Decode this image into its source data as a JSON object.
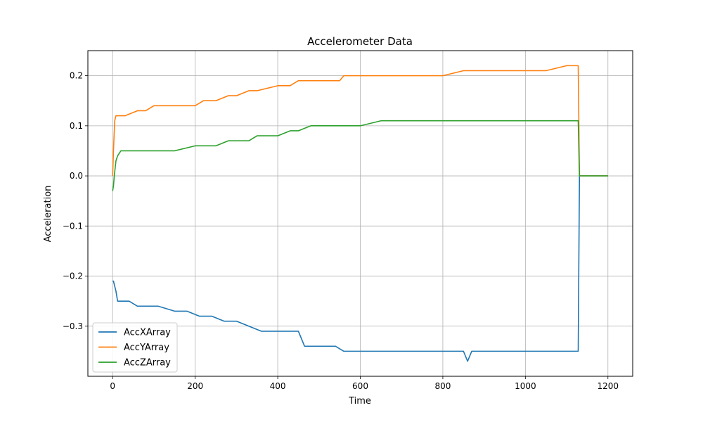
{
  "chart_data": {
    "type": "line",
    "title": "Accelerometer Data",
    "xlabel": "Time",
    "ylabel": "Acceleration",
    "xlim": [
      -60,
      1260
    ],
    "ylim": [
      -0.4,
      0.25
    ],
    "xticks": [
      0,
      200,
      400,
      600,
      800,
      1000,
      1200
    ],
    "yticks": [
      -0.3,
      -0.2,
      -0.1,
      0.0,
      0.1,
      0.2
    ],
    "xtick_labels": [
      "0",
      "200",
      "400",
      "600",
      "800",
      "1000",
      "1200"
    ],
    "ytick_labels": [
      "−0.3",
      "−0.2",
      "−0.1",
      "0.0",
      "0.1",
      "0.2"
    ],
    "grid": true,
    "legend_position": "lower-left",
    "series": [
      {
        "name": "AccXArray",
        "color": "#1f77b4",
        "x": [
          0,
          2,
          5,
          8,
          12,
          20,
          40,
          60,
          90,
          110,
          150,
          180,
          210,
          240,
          270,
          300,
          330,
          360,
          390,
          420,
          450,
          465,
          480,
          540,
          560,
          600,
          700,
          800,
          850,
          860,
          870,
          900,
          1000,
          1050,
          1100,
          1128,
          1131,
          1200
        ],
        "y": [
          -0.21,
          -0.21,
          -0.22,
          -0.23,
          -0.25,
          -0.25,
          -0.25,
          -0.26,
          -0.26,
          -0.26,
          -0.27,
          -0.27,
          -0.28,
          -0.28,
          -0.29,
          -0.29,
          -0.3,
          -0.31,
          -0.31,
          -0.31,
          -0.31,
          -0.34,
          -0.34,
          -0.34,
          -0.35,
          -0.35,
          -0.35,
          -0.35,
          -0.35,
          -0.37,
          -0.35,
          -0.35,
          -0.35,
          -0.35,
          -0.35,
          -0.35,
          0.0,
          0.0
        ]
      },
      {
        "name": "AccYArray",
        "color": "#ff7f0e",
        "x": [
          0,
          2,
          5,
          8,
          15,
          30,
          60,
          80,
          100,
          150,
          200,
          220,
          250,
          280,
          300,
          330,
          350,
          400,
          430,
          450,
          480,
          500,
          550,
          560,
          600,
          620,
          700,
          800,
          850,
          900,
          1000,
          1050,
          1100,
          1128,
          1131,
          1200
        ],
        "y": [
          0.0,
          0.05,
          0.11,
          0.12,
          0.12,
          0.12,
          0.13,
          0.13,
          0.14,
          0.14,
          0.14,
          0.15,
          0.15,
          0.16,
          0.16,
          0.17,
          0.17,
          0.18,
          0.18,
          0.19,
          0.19,
          0.19,
          0.19,
          0.2,
          0.2,
          0.2,
          0.2,
          0.2,
          0.21,
          0.21,
          0.21,
          0.21,
          0.22,
          0.22,
          0.0,
          0.0
        ]
      },
      {
        "name": "AccZArray",
        "color": "#2ca02c",
        "x": [
          0,
          2,
          4,
          8,
          12,
          20,
          50,
          100,
          150,
          200,
          250,
          280,
          300,
          330,
          350,
          370,
          400,
          430,
          450,
          480,
          550,
          560,
          600,
          650,
          700,
          800,
          850,
          900,
          1000,
          1050,
          1100,
          1128,
          1131,
          1200
        ],
        "y": [
          -0.03,
          -0.02,
          0.0,
          0.03,
          0.04,
          0.05,
          0.05,
          0.05,
          0.05,
          0.06,
          0.06,
          0.07,
          0.07,
          0.07,
          0.08,
          0.08,
          0.08,
          0.09,
          0.09,
          0.1,
          0.1,
          0.1,
          0.1,
          0.11,
          0.11,
          0.11,
          0.11,
          0.11,
          0.11,
          0.11,
          0.11,
          0.11,
          0.0,
          0.0
        ]
      }
    ]
  }
}
